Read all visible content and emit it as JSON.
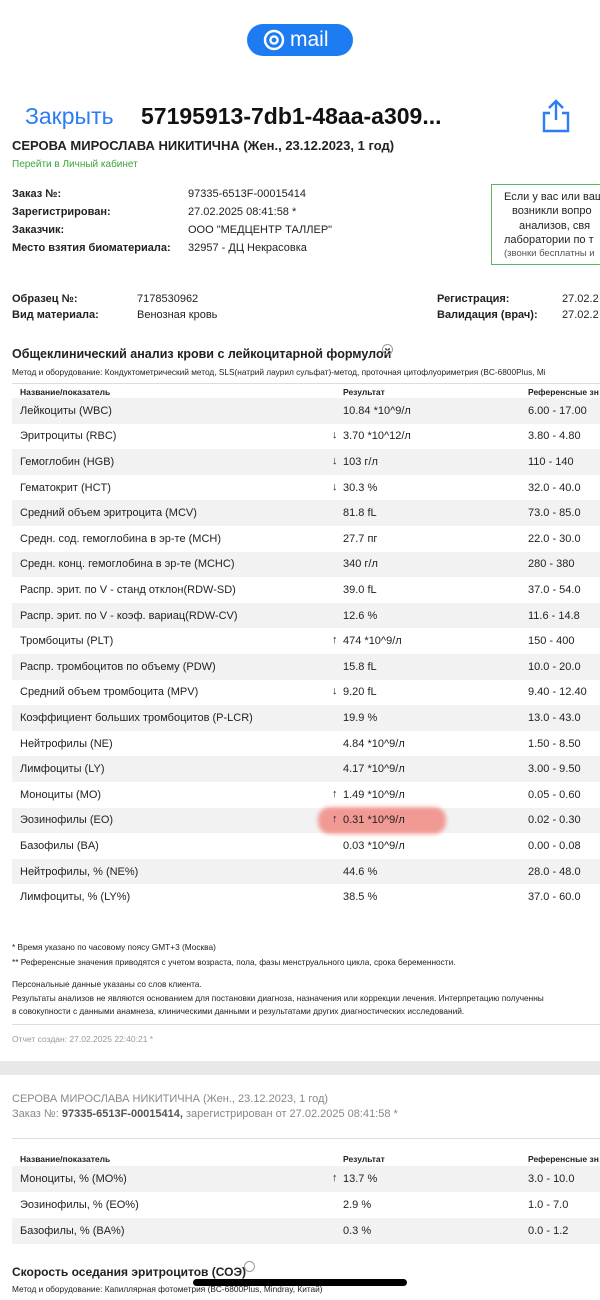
{
  "header": {
    "app": "mail",
    "close": "Закрыть",
    "subject": "57195913-7db1-48aa-a309..."
  },
  "report": {
    "patient": "СЕРОВА МИРОСЛАВА НИКИТИЧНА (Жен., 23.12.2023, 1 год)",
    "cabinet_link": "Перейти в Личный кабинет",
    "order_info": [
      {
        "label": "Заказ №:",
        "value": "97335-6513F-00015414"
      },
      {
        "label": "Зарегистрирован:",
        "value": "27.02.2025 08:41:58 *"
      },
      {
        "label": "Заказчик:",
        "value": "ООО \"МЕДЦЕНТР ТАЛЛЕР\""
      },
      {
        "label": "Место взятия биоматериала:",
        "value": "32957 - ДЦ Некрасовка"
      }
    ],
    "notice": [
      "Если у вас или ваш",
      "возникли вопро",
      "анализов, свя",
      "лаборатории по т",
      "(звонки бесплатны и"
    ],
    "sample_left": [
      {
        "label": "Образец №:",
        "value": "7178530962"
      },
      {
        "label": "Вид материала:",
        "value": "Венозная кровь"
      }
    ],
    "sample_right": [
      {
        "label": "Регистрация:",
        "value": "27.02.2"
      },
      {
        "label": "Валидация (врач):",
        "value": "27.02.2"
      }
    ],
    "section_title": "Общеклинический анализ крови с лейкоцитарной формулой",
    "method": "Метод и оборудование: Кондуктометрический метод, SLS(натрий лаурил сульфат)-метод, проточная цитофлуориметрия (BC-6800Plus, Mi",
    "columns": [
      "Название/показатель",
      "Результат",
      "Референсные зн"
    ],
    "rows": [
      {
        "name": "Лейкоциты (WBC)",
        "result": "10.84 *10^9/л",
        "reference": "6.00 - 17.00"
      },
      {
        "name": "Эритроциты (RBC)",
        "flag": "↓",
        "result": "3.70 *10^12/л",
        "reference": "3.80 - 4.80"
      },
      {
        "name": "Гемоглобин (HGB)",
        "flag": "↓",
        "result": "103 г/л",
        "reference": "110 - 140"
      },
      {
        "name": "Гематокрит (HCT)",
        "flag": "↓",
        "result": "30.3 %",
        "reference": "32.0 - 40.0"
      },
      {
        "name": "Средний объем эритроцита (MCV)",
        "result": "81.8 fL",
        "reference": "73.0 - 85.0"
      },
      {
        "name": "Средн. сод. гемоглобина в эр-те (MCH)",
        "result": "27.7 пг",
        "reference": "22.0 - 30.0"
      },
      {
        "name": "Средн. конц. гемоглобина в эр-те (MCHC)",
        "result": "340 г/л",
        "reference": "280 - 380"
      },
      {
        "name": "Распр. эрит. по V - станд отклон(RDW-SD)",
        "result": "39.0 fL",
        "reference": "37.0 - 54.0"
      },
      {
        "name": "Распр. эрит. по V - коэф. вариац(RDW-CV)",
        "result": "12.6 %",
        "reference": "11.6 - 14.8"
      },
      {
        "name": "Тромбоциты (PLT)",
        "flag": "↑",
        "result": "474 *10^9/л",
        "reference": "150 - 400"
      },
      {
        "name": "Распр. тромбоцитов по объему (PDW)",
        "result": "15.8 fL",
        "reference": "10.0 - 20.0"
      },
      {
        "name": "Средний объем тромбоцита (MPV)",
        "flag": "↓",
        "result": "9.20 fL",
        "reference": "9.40 - 12.40"
      },
      {
        "name": "Коэффициент больших тромбоцитов (P-LCR)",
        "result": "19.9 %",
        "reference": "13.0 - 43.0"
      },
      {
        "name": "Нейтрофилы (NE)",
        "result": "4.84 *10^9/л",
        "reference": "1.50 - 8.50"
      },
      {
        "name": "Лимфоциты (LY)",
        "result": "4.17 *10^9/л",
        "reference": "3.00 - 9.50"
      },
      {
        "name": "Моноциты (MO)",
        "flag": "↑",
        "result": "1.49 *10^9/л",
        "reference": "0.05 - 0.60"
      },
      {
        "name": "Эозинофилы (EO)",
        "flag": "↑",
        "result": "0.31 *10^9/л",
        "reference": "0.02 - 0.30",
        "highlighted": true
      },
      {
        "name": "Базофилы (BA)",
        "result": "0.03 *10^9/л",
        "reference": "0.00 - 0.08"
      },
      {
        "name": "Нейтрофилы, % (NE%)",
        "result": "44.6 %",
        "reference": "28.0 - 48.0"
      },
      {
        "name": "Лимфоциты, % (LY%)",
        "result": "38.5 %",
        "reference": "37.0 - 60.0"
      }
    ],
    "footnotes": [
      "* Время указано по часовому поясу GMT+3 (Москва)",
      "** Референсные значения приводятся с учетом возраста, пола, фазы менструального цикла, срока беременности.",
      "Персональные данные указаны со слов клиента.",
      "Результаты анализов не являются основанием для постановки диагноза, назначения или коррекции лечения. Интерпретацию полученны",
      "в совокупности с данными анамнеза, клиническими данными и результатами других диагностических исследований."
    ],
    "created": "Отчет создан: 27.02.2025 22:40:21 *"
  },
  "page2": {
    "patient": "СЕРОВА МИРОСЛАВА НИКИТИЧНА (Жен., 23.12.2023, 1 год)",
    "order_prefix": "Заказ №:",
    "order_number": "97335-6513F-00015414,",
    "order_suffix": "зарегистрирован от 27.02.2025 08:41:58 *",
    "columns": [
      "Название/показатель",
      "Результат",
      "Референсные зн"
    ],
    "rows": [
      {
        "name": "Моноциты, % (MO%)",
        "flag": "↑",
        "result": "13.7 %",
        "reference": "3.0 - 10.0"
      },
      {
        "name": "Эозинофилы, % (EO%)",
        "result": "2.9 %",
        "reference": "1.0 - 7.0"
      },
      {
        "name": "Базофилы, % (BA%)",
        "result": "0.3 %",
        "reference": "0.0 - 1.2"
      }
    ],
    "next_title": "Скорость оседания эритроцитов (СОЭ)",
    "next_method": "Метод и оборудование: Капиллярная фотометрия (BC-6800Plus, Mindray, Китай)"
  }
}
